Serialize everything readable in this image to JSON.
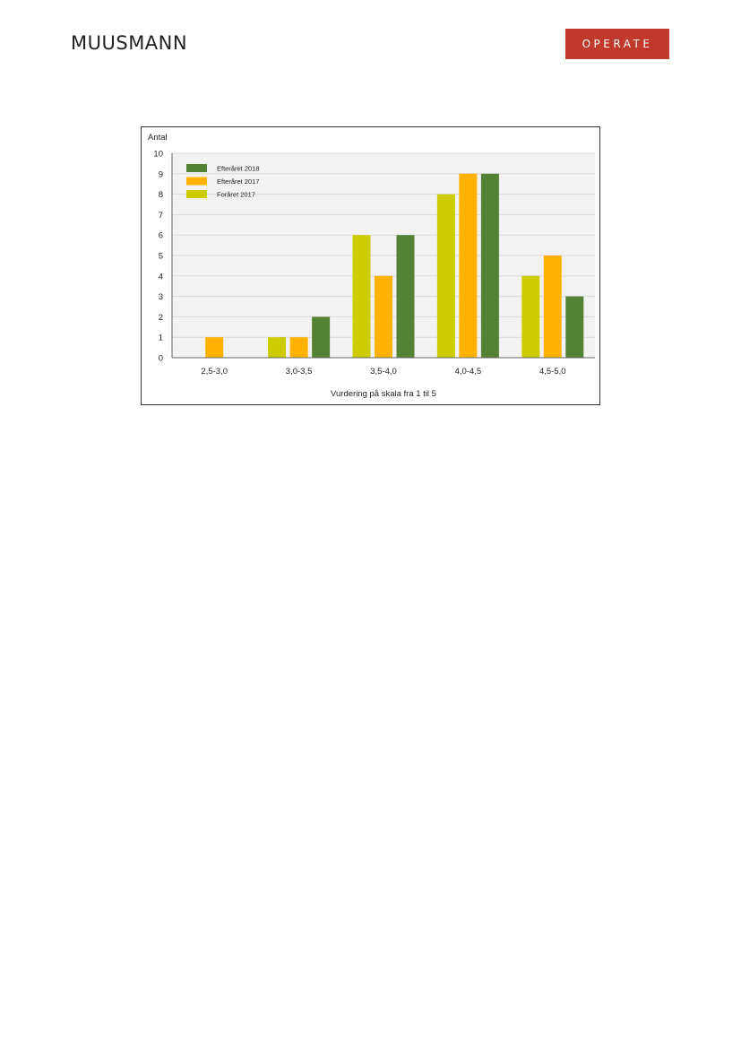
{
  "header": {
    "left_logo": "MUUSMANN",
    "right_logo": "OPERATE"
  },
  "chart_data": {
    "type": "bar",
    "title": "",
    "ylabel": "Antal",
    "xlabel": "Vurdering på skala fra 1 til 5",
    "ylim": [
      0,
      10
    ],
    "yticks": [
      0,
      1,
      2,
      3,
      4,
      5,
      6,
      7,
      8,
      9,
      10
    ],
    "grid": true,
    "legend_position": "top-left",
    "categories": [
      "2,5-3,0",
      "3,0-3,5",
      "3,5-4,0",
      "4,0-4,5",
      "4,5-5,0"
    ],
    "series": [
      {
        "name": "Foråret 2017",
        "color": "#cccc00",
        "values": [
          0,
          1,
          6,
          8,
          4
        ]
      },
      {
        "name": "Efteråret 2017",
        "color": "#ffb300",
        "values": [
          1,
          1,
          4,
          9,
          5
        ]
      },
      {
        "name": "Efteråret 2018",
        "color": "#548235",
        "values": [
          0,
          2,
          6,
          9,
          3
        ]
      }
    ],
    "legend_order": [
      2,
      1,
      0
    ]
  }
}
